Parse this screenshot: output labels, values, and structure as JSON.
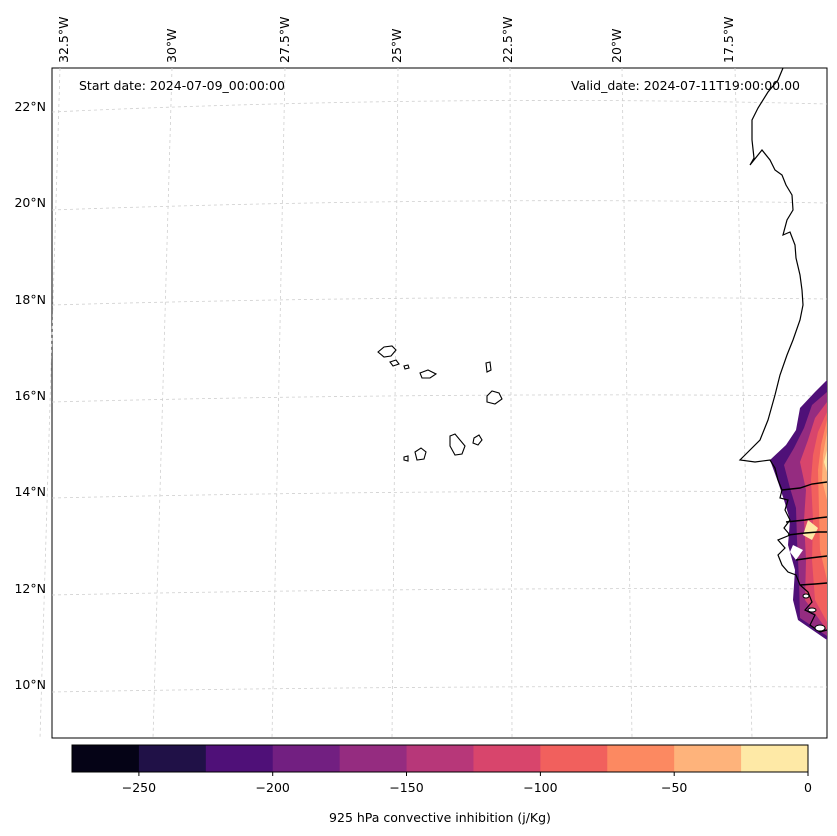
{
  "map": {
    "start_label": "Start date: 2024-07-09_00:00:00",
    "valid_label": "Valid_date: 2024-07-11T19:00:00.00",
    "lon_labels": [
      "32.5°W",
      "30°W",
      "27.5°W",
      "25°W",
      "22.5°W",
      "20°W",
      "17.5°W"
    ],
    "lat_labels": [
      "22°N",
      "20°N",
      "18°N",
      "16°N",
      "14°N",
      "12°N",
      "10°N"
    ],
    "features": [
      "Cape Verde islands",
      "West African coastline"
    ]
  },
  "colorbar": {
    "label": "925 hPa convective inhibition (j/Kg)",
    "tick_labels": [
      "−250",
      "−200",
      "−150",
      "−100",
      "−50",
      "0"
    ],
    "range": [
      -275,
      0
    ],
    "colors": [
      "#050316",
      "#201147",
      "#4f1078",
      "#721f81",
      "#952c80",
      "#b73779",
      "#d8456c",
      "#f1605d",
      "#fc8961",
      "#feb37b",
      "#fee9a6"
    ]
  }
}
